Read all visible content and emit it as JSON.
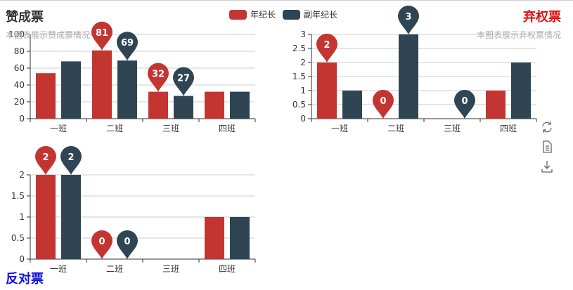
{
  "colors": {
    "series1": "#c23531",
    "series2": "#2f4554",
    "axis": "#333333",
    "grid": "#cccccc"
  },
  "legend": [
    "年纪长",
    "副年纪长"
  ],
  "charts": [
    {
      "title": "赞成票",
      "subtitle": "本图表展示赞成票情况",
      "title_color": "#333333"
    },
    {
      "title": "弃权票",
      "subtitle": "本图表展示弃权票情况",
      "title_color": "#e01010"
    },
    {
      "title": "反对票",
      "subtitle": "",
      "title_color": "#1010e0"
    }
  ],
  "toolbox": [
    "refresh-icon",
    "data-view-icon",
    "download-icon"
  ],
  "chart_data": [
    {
      "type": "bar",
      "categories": [
        "一班",
        "二班",
        "三班",
        "四班"
      ],
      "ylim": [
        0,
        100
      ],
      "yticks": [
        0,
        20,
        40,
        60,
        80,
        100
      ],
      "series": [
        {
          "name": "年纪长",
          "values": [
            54,
            81,
            32,
            32
          ],
          "max_label": "81",
          "min_label": "32",
          "max_index": 1,
          "min_index": 2
        },
        {
          "name": "副年纪长",
          "values": [
            68,
            69,
            27,
            32
          ],
          "max_label": "69",
          "min_label": "27",
          "max_index": 1,
          "min_index": 2
        }
      ]
    },
    {
      "type": "bar",
      "categories": [
        "一班",
        "二班",
        "三班",
        "四班"
      ],
      "ylim": [
        0,
        3
      ],
      "yticks": [
        0,
        0.5,
        1,
        1.5,
        2,
        2.5,
        3
      ],
      "ytick_labels": [
        "0",
        "0.5",
        "1",
        "1.5",
        "2",
        "2.5",
        "3"
      ],
      "series": [
        {
          "name": "年纪长",
          "values": [
            2,
            0,
            0,
            1
          ],
          "max_label": "2",
          "min_label": "0",
          "max_index": 0,
          "min_index": 1
        },
        {
          "name": "副年纪长",
          "values": [
            1,
            3,
            0,
            2
          ],
          "max_label": "3",
          "min_label": "0",
          "max_index": 1,
          "min_index": 2
        }
      ]
    },
    {
      "type": "bar",
      "categories": [
        "一班",
        "二班",
        "三班",
        "四班"
      ],
      "ylim": [
        0,
        2
      ],
      "yticks": [
        0,
        0.5,
        1,
        1.5,
        2
      ],
      "ytick_labels": [
        "0",
        "0.5",
        "1",
        "1.5",
        "2"
      ],
      "series": [
        {
          "name": "年纪长",
          "values": [
            2,
            0,
            0,
            1
          ],
          "max_label": "2",
          "min_label": "0",
          "max_index": 0,
          "min_index": 1
        },
        {
          "name": "副年纪长",
          "values": [
            2,
            0,
            0,
            1
          ],
          "max_label": "2",
          "min_label": "0",
          "max_index": 0,
          "min_index": 1
        }
      ]
    }
  ]
}
